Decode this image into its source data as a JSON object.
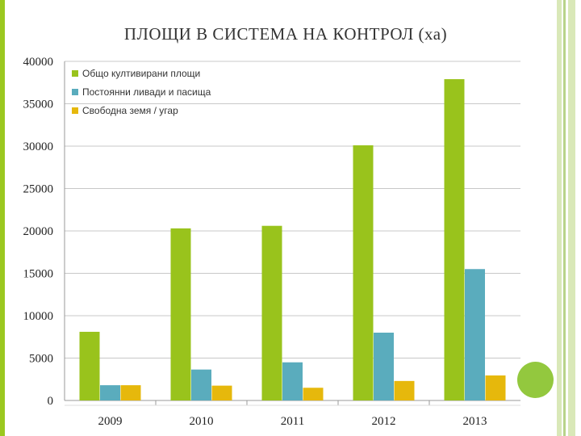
{
  "slide": {
    "title": "ПЛОЩИ В СИСТЕМА НА КОНТРОЛ (ха)",
    "colors": {
      "accent": "#9bc820",
      "stripe_light": "#d9e8b8",
      "stripe_dark": "#b8d38a",
      "circle": "#93c83e"
    }
  },
  "chart_data": {
    "type": "bar",
    "title": "",
    "xlabel": "",
    "ylabel": "",
    "categories": [
      "2009",
      "2010",
      "2011",
      "2012",
      "2013"
    ],
    "series": [
      {
        "name": "Общо култивирани площи",
        "color": "#99c31c",
        "values": [
          8100,
          20300,
          20600,
          30100,
          37900
        ]
      },
      {
        "name": "Постоянни ливади и пасища",
        "color": "#5aacbd",
        "values": [
          1800,
          3650,
          4500,
          8000,
          15500
        ]
      },
      {
        "name": "Свободна земя / угар",
        "color": "#e6b80c",
        "values": [
          1800,
          1750,
          1500,
          2300,
          2950
        ]
      }
    ],
    "ylim": [
      0,
      40000
    ],
    "yticks": [
      0,
      5000,
      10000,
      15000,
      20000,
      25000,
      30000,
      35000,
      40000
    ],
    "grid": true,
    "legend_position": "top-left"
  }
}
